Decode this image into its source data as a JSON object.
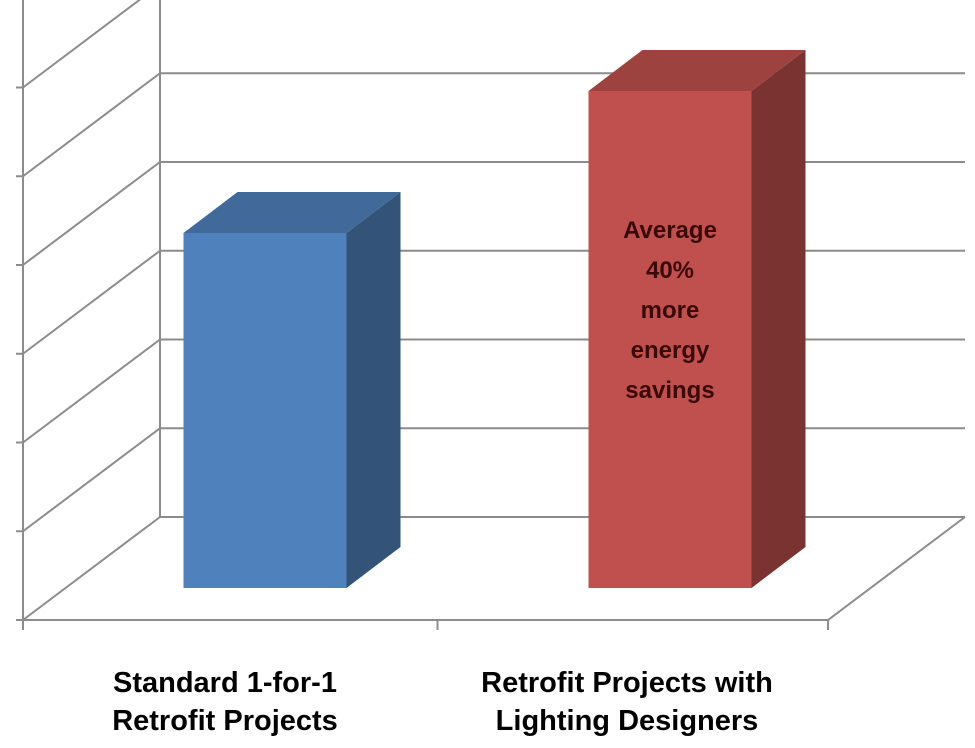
{
  "chart_data": {
    "type": "bar",
    "three_d": true,
    "title": "",
    "xlabel": "",
    "ylabel": "",
    "categories": [
      [
        "Standard 1-for-1",
        "Retrofit Projects"
      ],
      [
        "Retrofit Projects with",
        "Lighting Designers"
      ]
    ],
    "values": [
      100,
      140
    ],
    "ylim": [
      0,
      175
    ],
    "y_tick_step": 25,
    "y_tick_labels_shown": false,
    "grid": true,
    "legend": "none",
    "bar_colors": [
      "#4f81bd",
      "#c0504d"
    ],
    "annotations": [
      {
        "category_index": 1,
        "lines": [
          "Average",
          "40%",
          "more",
          "energy",
          "savings"
        ]
      }
    ]
  }
}
